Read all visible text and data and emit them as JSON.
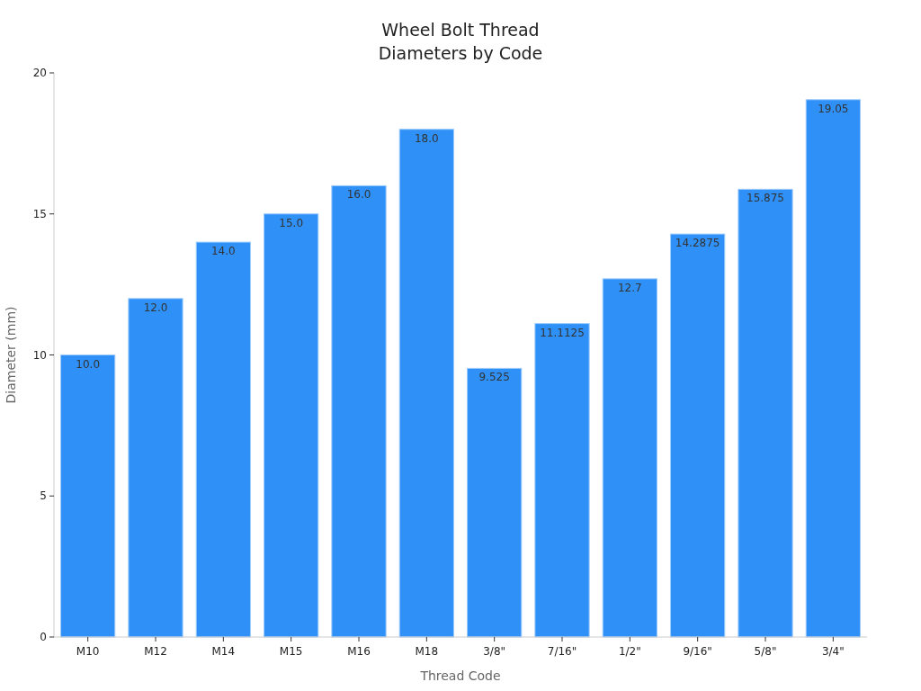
{
  "chart_data": {
    "type": "bar",
    "title": "Wheel Bolt Thread\nDiameters by Code",
    "xlabel": "Thread Code",
    "ylabel": "Diameter (mm)",
    "categories": [
      "M10",
      "M12",
      "M14",
      "M15",
      "M16",
      "M18",
      "3/8\"",
      "7/16\"",
      "1/2\"",
      "9/16\"",
      "5/8\"",
      "3/4\""
    ],
    "values": [
      10,
      12,
      14,
      15,
      16,
      18,
      9.525,
      11.1125,
      12.7,
      14.2875,
      15.875,
      19.05
    ],
    "value_labels": [
      "10.0",
      "12.0",
      "14.0",
      "15.0",
      "16.0",
      "18.0",
      "9.525",
      "11.1125",
      "12.7",
      "14.2875",
      "15.875",
      "19.05"
    ],
    "color": "#2f91f7",
    "ylim": [
      0,
      20
    ],
    "yticks": [
      0,
      5,
      10,
      15,
      20
    ],
    "grid": false
  }
}
